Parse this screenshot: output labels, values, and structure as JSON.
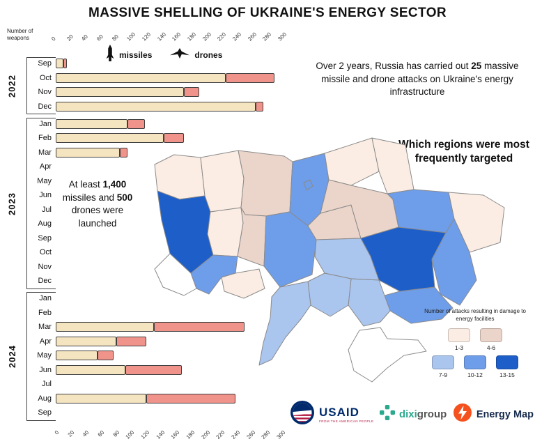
{
  "title": "MASSIVE SHELLING OF UKRAINE'S ENERGY SECTOR",
  "axis": {
    "label": "Number of weapons"
  },
  "bar_legend": {
    "missiles": "missiles",
    "drones": "drones"
  },
  "callout_attacks": {
    "pre": "Over 2 years, Russia has carried out ",
    "bold": "25",
    "post": " massive missile and drone attacks on Ukraine's energy infrastructure"
  },
  "callout_launched": {
    "pre": "At least ",
    "bold1": "1,400",
    "mid": " missiles and ",
    "bold2": "500",
    "post": " drones were launched"
  },
  "map_heading": "Which regions were most frequently targeted",
  "logos": {
    "usaid": {
      "name": "USAID",
      "tagline": "FROM THE AMERICAN PEOPLE"
    },
    "dixi": {
      "part1": "dixi",
      "part2": "group"
    },
    "energymap": {
      "name": "Energy Map"
    }
  },
  "chart_data": [
    {
      "type": "bar",
      "orientation": "horizontal",
      "stacked": true,
      "xlabel": "Number of weapons",
      "xlim": [
        0,
        300
      ],
      "ticks": [
        0,
        20,
        40,
        60,
        80,
        100,
        120,
        140,
        160,
        180,
        200,
        220,
        240,
        260,
        280,
        300
      ],
      "groups": [
        {
          "year": "2022",
          "months": [
            "Sep",
            "Oct",
            "Nov",
            "Dec"
          ]
        },
        {
          "year": "2023",
          "months": [
            "Jan",
            "Feb",
            "Mar",
            "Apr",
            "May",
            "Jun",
            "Jul",
            "Aug",
            "Sep",
            "Oct",
            "Nov",
            "Dec"
          ]
        },
        {
          "year": "2024",
          "months": [
            "Jan",
            "Feb",
            "Mar",
            "Apr",
            "May",
            "Jun",
            "Jul",
            "Aug",
            "Sep"
          ]
        }
      ],
      "series": [
        {
          "name": "missiles",
          "color": "#F5E4C0",
          "values": [
            10,
            225,
            170,
            265,
            95,
            143,
            85,
            0,
            0,
            0,
            0,
            0,
            0,
            0,
            0,
            0,
            0,
            0,
            130,
            80,
            55,
            92,
            0,
            120,
            0
          ]
        },
        {
          "name": "drones",
          "color": "#F0938B",
          "values": [
            5,
            65,
            20,
            10,
            23,
            27,
            10,
            0,
            0,
            0,
            0,
            0,
            0,
            0,
            0,
            0,
            0,
            0,
            120,
            40,
            22,
            75,
            0,
            118,
            0
          ]
        }
      ]
    },
    {
      "type": "choropleth",
      "legend_title": "Number of attacks resulting in damage to energy facilities",
      "no_data_color": "#FFFFFF",
      "buckets": [
        {
          "label": "1-3",
          "color": "#FBEDE3"
        },
        {
          "label": "4-6",
          "color": "#EBD4C9"
        },
        {
          "label": "7-9",
          "color": "#AAC5EE"
        },
        {
          "label": "10-12",
          "color": "#6E9DE9"
        },
        {
          "label": "13-15",
          "color": "#1E5EC8"
        }
      ],
      "regions": [
        {
          "name": "Volyn",
          "bucket": "1-3"
        },
        {
          "name": "Rivne",
          "bucket": "1-3"
        },
        {
          "name": "Zhytomyr",
          "bucket": "4-6"
        },
        {
          "name": "Kyiv",
          "bucket": "10-12"
        },
        {
          "name": "Kyiv City",
          "bucket": "10-12"
        },
        {
          "name": "Chernihiv",
          "bucket": "1-3"
        },
        {
          "name": "Sumy",
          "bucket": "1-3"
        },
        {
          "name": "Lviv",
          "bucket": "13-15"
        },
        {
          "name": "Ternopil",
          "bucket": "1-3"
        },
        {
          "name": "Khmelnytskyi",
          "bucket": "4-6"
        },
        {
          "name": "Vinnytsia",
          "bucket": "10-12"
        },
        {
          "name": "Cherkasy",
          "bucket": "4-6"
        },
        {
          "name": "Poltava",
          "bucket": "4-6"
        },
        {
          "name": "Kharkiv",
          "bucket": "10-12"
        },
        {
          "name": "Luhansk",
          "bucket": "1-3"
        },
        {
          "name": "Zakarpattia",
          "bucket": "none"
        },
        {
          "name": "Ivano-Frankivsk",
          "bucket": "10-12"
        },
        {
          "name": "Chernivtsi",
          "bucket": "1-3"
        },
        {
          "name": "Kirovohrad",
          "bucket": "7-9"
        },
        {
          "name": "Dnipropetrovsk",
          "bucket": "13-15"
        },
        {
          "name": "Donetsk",
          "bucket": "10-12"
        },
        {
          "name": "Zaporizhzhia",
          "bucket": "10-12"
        },
        {
          "name": "Kherson",
          "bucket": "7-9"
        },
        {
          "name": "Mykolaiv",
          "bucket": "7-9"
        },
        {
          "name": "Odesa",
          "bucket": "7-9"
        },
        {
          "name": "Crimea",
          "bucket": "none"
        }
      ]
    }
  ]
}
